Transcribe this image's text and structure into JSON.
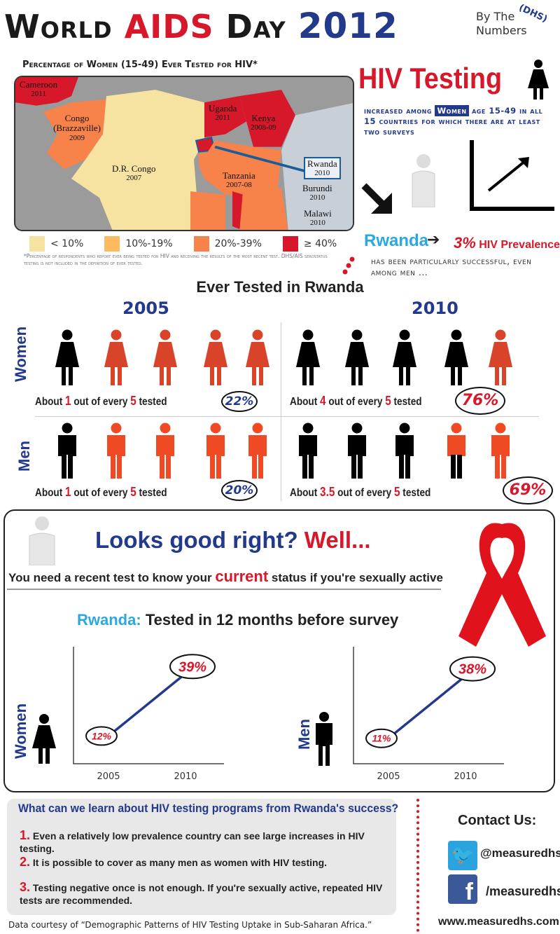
{
  "header": {
    "world": "World",
    "aids": "AIDS",
    "day": "Day",
    "year": "2012",
    "by_the": "By The",
    "numbers": "Numbers",
    "dhs": "(DHS)"
  },
  "map": {
    "title": "Percentage of Women (15-49) Ever Tested for HIV*",
    "countries": [
      {
        "name": "Cameroon",
        "year": "2011",
        "category": "40+"
      },
      {
        "name": "Congo (Brazzaville)",
        "year": "2009",
        "category": "20-39"
      },
      {
        "name": "D.R. Congo",
        "year": "2007",
        "category": "<10"
      },
      {
        "name": "Uganda",
        "year": "2011",
        "category": "40+"
      },
      {
        "name": "Kenya",
        "year": "2008-09",
        "category": "40+"
      },
      {
        "name": "Rwanda",
        "year": "2010",
        "category": "40+"
      },
      {
        "name": "Tanzania",
        "year": "2007-08",
        "category": "20-39"
      },
      {
        "name": "Burundi",
        "year": "2010",
        "category": "20-39"
      },
      {
        "name": "Malawi",
        "year": "2010",
        "category": "40+"
      }
    ],
    "legend": [
      {
        "label": "< 10%",
        "color": "#f6e3a1"
      },
      {
        "label": "10%-19%",
        "color": "#fdbb5e"
      },
      {
        "label": "20%-39%",
        "color": "#f7834a"
      },
      {
        "label": "≥ 40%",
        "color": "#d7182a"
      }
    ],
    "footnote": "*Percentage of respondents who report ever being tested for HIV and receiving the results of the most recent test. DHS/AIS serostatus testing is not included in the definition of ever tested."
  },
  "testing": {
    "title": "HIV Testing",
    "women_word": "Women",
    "text_before": "increased among",
    "text_after": "age 15-49 in all 15 countries for which there are at least two surveys"
  },
  "rwanda_note": {
    "country": "Rwanda",
    "prevalence_value": "3%",
    "prevalence_label": "HIV Prevalence",
    "text": "has been particularly successful, even among men ..."
  },
  "ever_tested": {
    "title": "Ever Tested in Rwanda",
    "years": [
      "2005",
      "2010"
    ],
    "rows": [
      {
        "label": "Women",
        "cells": [
          {
            "tested": 1,
            "of": 5,
            "pre": "About",
            "mid": "out of every",
            "post": "tested",
            "n": "1",
            "d": "5",
            "percent": "22%",
            "figures": [
              "k",
              "r",
              "r",
              "r",
              "r"
            ]
          },
          {
            "pre": "About",
            "mid": "out of every",
            "post": "tested",
            "n": "4",
            "d": "5",
            "percent": "76%",
            "figures": [
              "k",
              "k",
              "k",
              "k",
              "r"
            ]
          }
        ]
      },
      {
        "label": "Men",
        "cells": [
          {
            "pre": "About",
            "mid": "out of every",
            "post": "tested",
            "n": "1",
            "d": "5",
            "percent": "20%",
            "figures": [
              "k",
              "r",
              "r",
              "r",
              "r"
            ]
          },
          {
            "pre": "About",
            "mid": "out of every",
            "post": "tested",
            "n": "3.5",
            "d": "5",
            "percent": "69%",
            "figures": [
              "k",
              "k",
              "k",
              "h",
              "r"
            ]
          }
        ]
      }
    ]
  },
  "recent": {
    "headline_a": "Looks good right?",
    "headline_b": "Well...",
    "sub_a": "You need a recent test to know your",
    "sub_current": "current",
    "sub_b": "status if you're sexually active",
    "chart_title_a": "Rwanda:",
    "chart_title_b": "Tested in 12 months before survey"
  },
  "chart_data": [
    {
      "type": "line",
      "series": [
        {
          "name": "Women",
          "values": [
            12,
            39
          ]
        }
      ],
      "x": [
        "2005",
        "2010"
      ],
      "labels": [
        "12%",
        "39%"
      ],
      "ylim": [
        0,
        50
      ]
    },
    {
      "type": "line",
      "series": [
        {
          "name": "Men",
          "values": [
            11,
            38
          ]
        }
      ],
      "x": [
        "2005",
        "2010"
      ],
      "labels": [
        "11%",
        "38%"
      ],
      "ylim": [
        0,
        50
      ]
    }
  ],
  "lessons": {
    "title": "What can we learn about HIV testing programs from Rwanda's success?",
    "items": [
      {
        "n": "1.",
        "text": "Even a relatively low prevalence country can see large increases in HIV testing."
      },
      {
        "n": "2.",
        "text": "It is possible to cover as many men as women with HIV testing."
      },
      {
        "n": "3.",
        "text": " Testing negative once is not enough.  If you're sexually active, repeated HIV tests are recommended."
      }
    ]
  },
  "contact": {
    "title": "Contact Us:",
    "twitter": "@measuredhs",
    "facebook": "/measuredhs",
    "website": "www.measuredhs.com"
  },
  "source": "Data courtesy of “Demographic Patterns of HIV Testing Uptake in Sub-Saharan Africa.”",
  "colors": {
    "red": "#d7182a",
    "blue": "#233a8c",
    "cyan": "#29a9e0",
    "figure_red": "#f04a24",
    "figure_red_women": "#d8442a"
  }
}
